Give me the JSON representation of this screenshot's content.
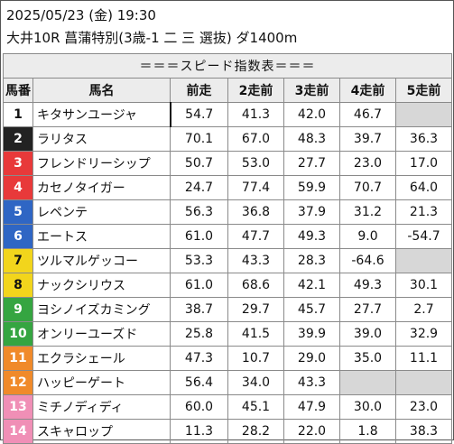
{
  "header": {
    "line1": "2025/05/23 (金) 19:30",
    "line2": "大井10R 菖蒲特別(3歳-1 二 三 選抜) ダ1400m"
  },
  "table": {
    "section_title": "＝＝＝スピード指数表＝＝＝",
    "columns": [
      "馬番",
      "馬名",
      "前走",
      "2走前",
      "3走前",
      "4走前",
      "5走前"
    ],
    "rows": [
      {
        "no": "1",
        "gate": 1,
        "name": "キタサンユージャ",
        "v": [
          "54.7",
          "41.3",
          "42.0",
          "46.7",
          ""
        ]
      },
      {
        "no": "2",
        "gate": 2,
        "name": "ラリタス",
        "v": [
          "70.1",
          "67.0",
          "48.3",
          "39.7",
          "36.3"
        ]
      },
      {
        "no": "3",
        "gate": 3,
        "name": "フレンドリーシップ",
        "v": [
          "50.7",
          "53.0",
          "27.7",
          "23.0",
          "17.0"
        ]
      },
      {
        "no": "4",
        "gate": 3,
        "name": "カセノタイガー",
        "v": [
          "24.7",
          "77.4",
          "59.9",
          "70.7",
          "64.0"
        ]
      },
      {
        "no": "5",
        "gate": 4,
        "name": "レペンテ",
        "v": [
          "56.3",
          "36.8",
          "37.9",
          "31.2",
          "21.3"
        ]
      },
      {
        "no": "6",
        "gate": 4,
        "name": "エートス",
        "v": [
          "61.0",
          "47.7",
          "49.3",
          "9.0",
          "-54.7"
        ]
      },
      {
        "no": "7",
        "gate": 5,
        "name": "ツルマルゲッコー",
        "v": [
          "53.3",
          "43.3",
          "28.3",
          "-64.6",
          ""
        ]
      },
      {
        "no": "8",
        "gate": 5,
        "name": "ナックシリウス",
        "v": [
          "61.0",
          "68.6",
          "42.1",
          "49.3",
          "30.1"
        ]
      },
      {
        "no": "9",
        "gate": 6,
        "name": "ヨシノイズカミング",
        "v": [
          "38.7",
          "29.7",
          "45.7",
          "27.7",
          "2.7"
        ]
      },
      {
        "no": "10",
        "gate": 6,
        "name": "オンリーユーズド",
        "v": [
          "25.8",
          "41.5",
          "39.9",
          "39.0",
          "32.9"
        ]
      },
      {
        "no": "11",
        "gate": 7,
        "name": "エクラシェール",
        "v": [
          "47.3",
          "10.7",
          "29.0",
          "35.0",
          "11.1"
        ]
      },
      {
        "no": "12",
        "gate": 7,
        "name": "ハッピーゲート",
        "v": [
          "56.4",
          "34.0",
          "43.3",
          "",
          ""
        ]
      },
      {
        "no": "13",
        "gate": 8,
        "name": "ミチノディディ",
        "v": [
          "60.0",
          "45.1",
          "47.9",
          "30.0",
          "23.0"
        ]
      },
      {
        "no": "14",
        "gate": 8,
        "name": "スキャロップ",
        "v": [
          "11.3",
          "28.2",
          "22.0",
          "1.8",
          "38.3"
        ]
      }
    ]
  }
}
